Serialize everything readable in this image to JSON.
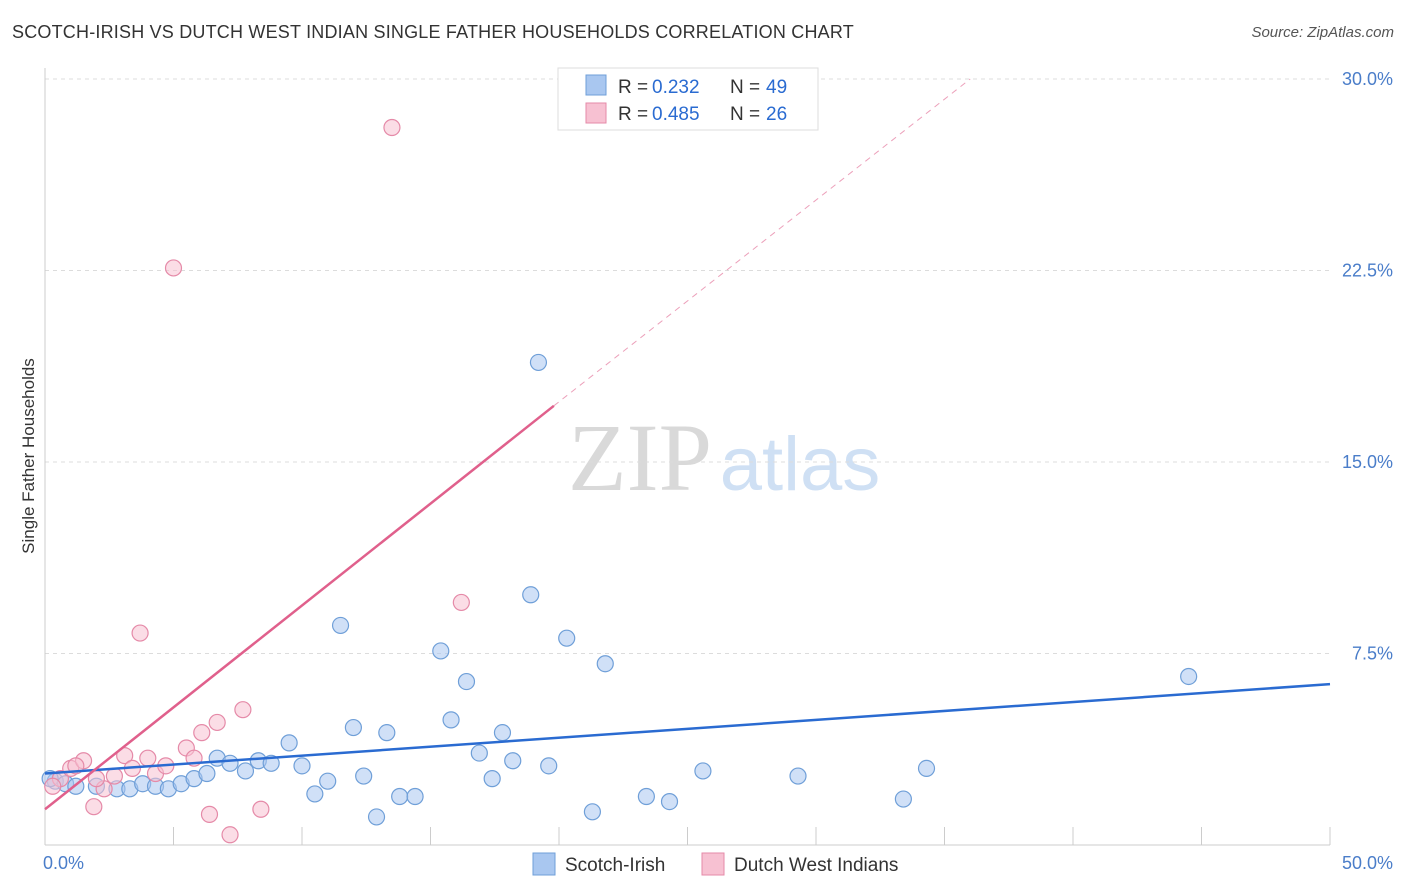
{
  "chart_data": {
    "type": "scatter",
    "title": "SCOTCH-IRISH VS DUTCH WEST INDIAN SINGLE FATHER HOUSEHOLDS CORRELATION CHART",
    "source": "Source: ZipAtlas.com",
    "ylabel": "Single Father Households",
    "xlim": [
      0,
      50
    ],
    "ylim": [
      0,
      30
    ],
    "x_tick_labels": [
      "0.0%",
      "50.0%"
    ],
    "y_ticks": [
      7.5,
      15.0,
      22.5,
      30.0
    ],
    "y_tick_labels": [
      "7.5%",
      "15.0%",
      "22.5%",
      "30.0%"
    ],
    "watermark": {
      "zip": "ZIP",
      "atlas": "atlas"
    },
    "legend": {
      "r_label": "R =",
      "n_label": "N =",
      "entries": [
        {
          "r": "0.232",
          "n": "49"
        },
        {
          "r": "0.485",
          "n": "26"
        }
      ]
    },
    "series": [
      {
        "name": "Scotch-Irish",
        "color": "#a9c7f0",
        "stroke": "#6f9fd8",
        "line_color": "#2a6bd1",
        "trend": {
          "x0": 0,
          "y0": 2.8,
          "x1": 50,
          "y1": 6.3
        },
        "points": [
          [
            0.4,
            2.5
          ],
          [
            0.8,
            2.4
          ],
          [
            1.2,
            2.3
          ],
          [
            2.0,
            2.3
          ],
          [
            2.8,
            2.2
          ],
          [
            3.3,
            2.2
          ],
          [
            3.8,
            2.4
          ],
          [
            4.3,
            2.3
          ],
          [
            4.8,
            2.2
          ],
          [
            5.3,
            2.4
          ],
          [
            5.8,
            2.6
          ],
          [
            6.3,
            2.8
          ],
          [
            6.7,
            3.4
          ],
          [
            7.2,
            3.2
          ],
          [
            7.8,
            2.9
          ],
          [
            8.3,
            3.3
          ],
          [
            8.8,
            3.2
          ],
          [
            9.5,
            4.0
          ],
          [
            10.0,
            3.1
          ],
          [
            10.5,
            2.0
          ],
          [
            11.0,
            2.5
          ],
          [
            11.5,
            8.6
          ],
          [
            12.0,
            4.6
          ],
          [
            12.4,
            2.7
          ],
          [
            12.9,
            1.1
          ],
          [
            13.3,
            4.4
          ],
          [
            13.8,
            1.9
          ],
          [
            14.4,
            1.9
          ],
          [
            15.4,
            7.6
          ],
          [
            15.8,
            4.9
          ],
          [
            16.4,
            6.4
          ],
          [
            16.9,
            3.6
          ],
          [
            17.4,
            2.6
          ],
          [
            17.8,
            4.4
          ],
          [
            18.2,
            3.3
          ],
          [
            18.9,
            9.8
          ],
          [
            19.2,
            18.9
          ],
          [
            19.6,
            3.1
          ],
          [
            20.3,
            8.1
          ],
          [
            21.3,
            1.3
          ],
          [
            21.8,
            7.1
          ],
          [
            23.4,
            1.9
          ],
          [
            24.3,
            1.7
          ],
          [
            25.6,
            2.9
          ],
          [
            29.3,
            2.7
          ],
          [
            33.4,
            1.8
          ],
          [
            34.3,
            3.0
          ],
          [
            44.5,
            6.6
          ],
          [
            0.2,
            2.6
          ]
        ]
      },
      {
        "name": "Dutch West Indians",
        "color": "#f7c1d2",
        "stroke": "#e58aa8",
        "line_color": "#e0608c",
        "trend": {
          "x0": 0,
          "y0": 1.4,
          "x1": 19.8,
          "y1": 17.2
        },
        "trend_ext": {
          "x0": 19.8,
          "y0": 17.2,
          "x1": 36.0,
          "y1": 30.0
        },
        "points": [
          [
            0.6,
            2.6
          ],
          [
            1.0,
            3.0
          ],
          [
            1.5,
            3.3
          ],
          [
            1.9,
            1.5
          ],
          [
            2.3,
            2.2
          ],
          [
            2.7,
            2.7
          ],
          [
            3.1,
            3.5
          ],
          [
            3.4,
            3.0
          ],
          [
            3.7,
            8.3
          ],
          [
            4.0,
            3.4
          ],
          [
            4.3,
            2.8
          ],
          [
            4.7,
            3.1
          ],
          [
            5.0,
            22.6
          ],
          [
            5.5,
            3.8
          ],
          [
            5.8,
            3.4
          ],
          [
            6.1,
            4.4
          ],
          [
            6.4,
            1.2
          ],
          [
            6.7,
            4.8
          ],
          [
            7.2,
            0.4
          ],
          [
            7.7,
            5.3
          ],
          [
            8.4,
            1.4
          ],
          [
            13.5,
            28.1
          ],
          [
            16.2,
            9.5
          ],
          [
            1.2,
            3.1
          ],
          [
            0.3,
            2.3
          ],
          [
            2.0,
            2.6
          ]
        ]
      }
    ]
  }
}
